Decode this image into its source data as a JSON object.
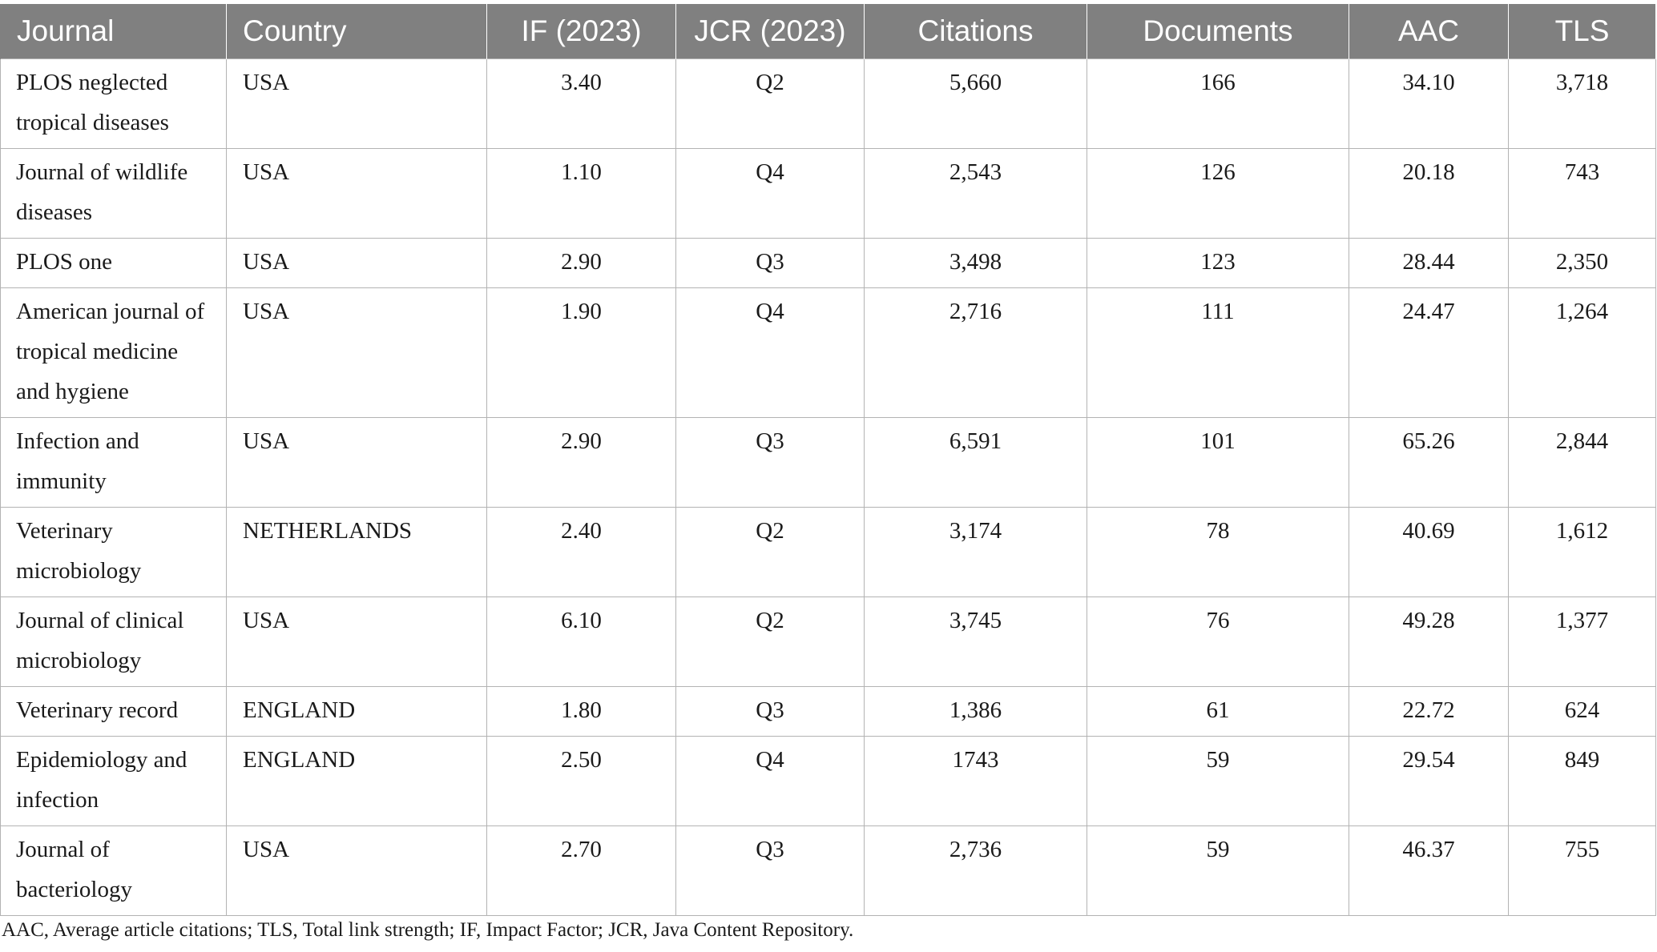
{
  "table": {
    "headers": [
      "Journal",
      "Country",
      "IF (2023)",
      "JCR (2023)",
      "Citations",
      "Documents",
      "AAC",
      "TLS"
    ],
    "rows": [
      [
        "PLOS neglected tropical diseases",
        "USA",
        "3.40",
        "Q2",
        "5,660",
        "166",
        "34.10",
        "3,718"
      ],
      [
        "Journal of wildlife diseases",
        "USA",
        "1.10",
        "Q4",
        "2,543",
        "126",
        "20.18",
        "743"
      ],
      [
        "PLOS one",
        "USA",
        "2.90",
        "Q3",
        "3,498",
        "123",
        "28.44",
        "2,350"
      ],
      [
        "American journal of tropical medicine and hygiene",
        "USA",
        "1.90",
        "Q4",
        "2,716",
        "111",
        "24.47",
        "1,264"
      ],
      [
        "Infection and immunity",
        "USA",
        "2.90",
        "Q3",
        "6,591",
        "101",
        "65.26",
        "2,844"
      ],
      [
        "Veterinary microbiology",
        "NETHERLANDS",
        "2.40",
        "Q2",
        "3,174",
        "78",
        "40.69",
        "1,612"
      ],
      [
        "Journal of clinical microbiology",
        "USA",
        "6.10",
        "Q2",
        "3,745",
        "76",
        "49.28",
        "1,377"
      ],
      [
        "Veterinary record",
        "ENGLAND",
        "1.80",
        "Q3",
        "1,386",
        "61",
        "22.72",
        "624"
      ],
      [
        "Epidemiology and infection",
        "ENGLAND",
        "2.50",
        "Q4",
        "1743",
        "59",
        "29.54",
        "849"
      ],
      [
        "Journal of bacteriology",
        "USA",
        "2.70",
        "Q3",
        "2,736",
        "59",
        "46.37",
        "755"
      ]
    ]
  },
  "footnote": "AAC, Average article citations; TLS, Total link strength; IF, Impact Factor; JCR, Java Content Repository.",
  "colors": {
    "header_bg": "#808080",
    "header_text": "#ffffff",
    "grid": "#b3b3b3"
  }
}
